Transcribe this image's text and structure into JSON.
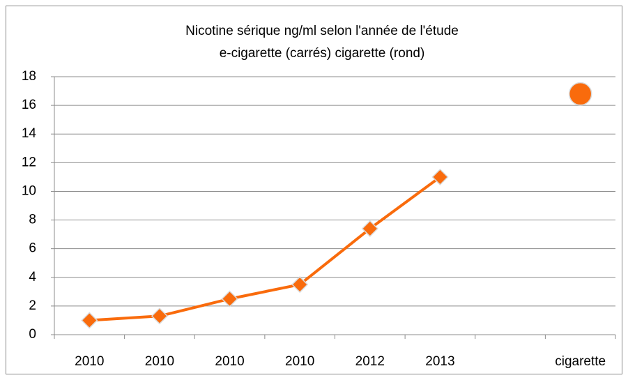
{
  "chart_data": {
    "type": "line",
    "title": "Nicotine sérique ng/ml selon l'année de l'étude",
    "subtitle": "e-cigarette (carrés) cigarette (rond)",
    "categories": [
      "2010",
      "2010",
      "2010",
      "2010",
      "2012",
      "2013",
      null,
      "cigarette"
    ],
    "series": [
      {
        "color": "#f96b0c",
        "marker": "diamond",
        "values": [
          1.0,
          1.3,
          2.5,
          3.5,
          7.4,
          11.0,
          null,
          null
        ]
      },
      {
        "color": "#f96b0c",
        "marker": "circle",
        "values": [
          null,
          null,
          null,
          null,
          null,
          null,
          null,
          16.8
        ]
      }
    ],
    "ylim": [
      0,
      18
    ],
    "yticks": [
      0,
      2,
      4,
      6,
      8,
      10,
      12,
      14,
      16,
      18
    ],
    "grid": true
  }
}
